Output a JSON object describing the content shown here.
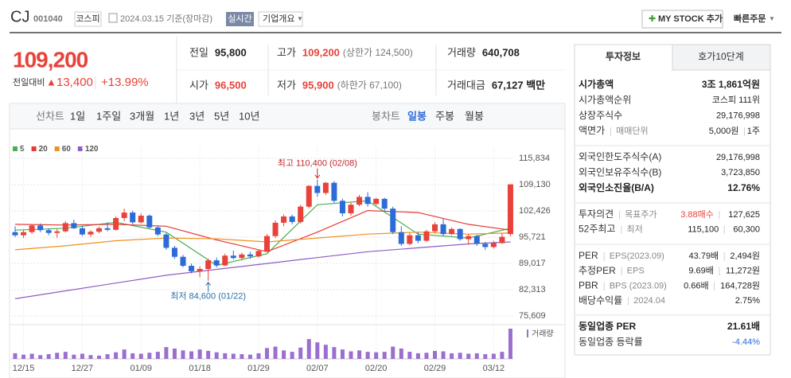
{
  "header": {
    "name": "CJ",
    "code": "001040",
    "market": "코스피",
    "date": "2024.03.15 기준(장마감)",
    "realtime": "실시간",
    "overview": "기업개요",
    "mystock": "MY STOCK 추가",
    "quick_order": "빠른주문"
  },
  "price": {
    "current": "109,200",
    "change_label": "전일대비",
    "change": "13,400",
    "rate": "+13.99%"
  },
  "summary": {
    "rows": [
      [
        {
          "label": "전일",
          "value": "95,800"
        },
        {
          "label": "고가",
          "value": "109,200",
          "note": "(상한가 124,500)"
        },
        {
          "label": "거래량",
          "value": "640,708"
        }
      ],
      [
        {
          "label": "시가",
          "value": "96,500"
        },
        {
          "label": "저가",
          "value": "95,900",
          "note": "(하한가 67,100)"
        },
        {
          "label": "거래대금",
          "value": "67,127 백만"
        }
      ]
    ]
  },
  "periods": {
    "line_label": "선차트",
    "line": [
      "1일",
      "1주일",
      "3개월",
      "1년",
      "3년",
      "5년",
      "10년"
    ],
    "candle_label": "봉차트",
    "candle": [
      "일봉",
      "주봉",
      "월봉"
    ],
    "active_candle": 0
  },
  "chart": {
    "up_color": "#e8423a",
    "down_color": "#2d6bd6",
    "ylim": [
      73983,
      118679
    ],
    "yticks": [
      {
        "value": 115834,
        "label": "115,834"
      },
      {
        "value": 109130,
        "label": "109,130"
      },
      {
        "value": 102426,
        "label": "102,426"
      },
      {
        "value": 95721,
        "label": "95,721"
      },
      {
        "value": 89017,
        "label": "89,017"
      },
      {
        "value": 82313,
        "label": "82,313"
      },
      {
        "value": 75609,
        "label": "75,609"
      }
    ],
    "categories": [
      null,
      "12/15",
      null,
      null,
      null,
      null,
      null,
      null,
      "12/27",
      null,
      null,
      null,
      null,
      null,
      null,
      "01/09",
      null,
      null,
      null,
      null,
      null,
      null,
      "01/18",
      null,
      null,
      null,
      null,
      null,
      null,
      "01/29",
      null,
      null,
      null,
      null,
      null,
      null,
      "02/07",
      null,
      null,
      null,
      null,
      null,
      null,
      "02/20",
      null,
      null,
      null,
      null,
      null,
      null,
      "02/29",
      null,
      null,
      null,
      null,
      null,
      null,
      "03/12",
      null,
      null
    ],
    "candles": [
      [
        97000,
        98500,
        95800,
        96200
      ],
      [
        96200,
        97500,
        95500,
        97000
      ],
      [
        97000,
        99000,
        96500,
        98700
      ],
      [
        98700,
        99200,
        97000,
        97500
      ],
      [
        97500,
        98000,
        96200,
        96800
      ],
      [
        96800,
        97800,
        95600,
        97200
      ],
      [
        97200,
        99800,
        96900,
        99300
      ],
      [
        99300,
        100200,
        97800,
        98000
      ],
      [
        98000,
        98600,
        96000,
        96400
      ],
      [
        96400,
        97500,
        95800,
        97100
      ],
      [
        97100,
        98400,
        96700,
        98000
      ],
      [
        98000,
        99500,
        97200,
        97600
      ],
      [
        97600,
        101000,
        97400,
        100600
      ],
      [
        100600,
        103000,
        99800,
        102000
      ],
      [
        102000,
        102500,
        99000,
        99500
      ],
      [
        99500,
        101800,
        99200,
        101200
      ],
      [
        101200,
        101500,
        97800,
        98200
      ],
      [
        98200,
        98600,
        96000,
        96400
      ],
      [
        96400,
        96800,
        92500,
        93000
      ],
      [
        93000,
        93500,
        90200,
        90700
      ],
      [
        90700,
        91200,
        88000,
        88400
      ],
      [
        88400,
        89000,
        86500,
        87000
      ],
      [
        87000,
        88200,
        85500,
        87600
      ],
      [
        87600,
        90200,
        84600,
        89800
      ],
      [
        89800,
        90500,
        88000,
        88500
      ],
      [
        88500,
        91500,
        88300,
        91000
      ],
      [
        91000,
        92300,
        90000,
        90400
      ],
      [
        90400,
        91800,
        89800,
        91300
      ],
      [
        91300,
        92000,
        90200,
        90800
      ],
      [
        90800,
        92500,
        90500,
        92200
      ],
      [
        92200,
        96500,
        92000,
        96000
      ],
      [
        96000,
        100000,
        95500,
        99400
      ],
      [
        99400,
        101500,
        98500,
        101000
      ],
      [
        101000,
        101500,
        99000,
        99600
      ],
      [
        99600,
        104000,
        99200,
        103500
      ],
      [
        103500,
        109000,
        103000,
        108800
      ],
      [
        108800,
        110400,
        106000,
        107000
      ],
      [
        107000,
        109800,
        106500,
        109600
      ],
      [
        109600,
        110000,
        104500,
        105000
      ],
      [
        105000,
        105500,
        101000,
        101800
      ],
      [
        101800,
        104500,
        101200,
        104000
      ],
      [
        104000,
        106500,
        103600,
        106000
      ],
      [
        106000,
        107200,
        103500,
        104200
      ],
      [
        104200,
        105800,
        103800,
        105500
      ],
      [
        105500,
        105800,
        102500,
        103000
      ],
      [
        103000,
        103500,
        96500,
        97000
      ],
      [
        97000,
        98500,
        93500,
        94000
      ],
      [
        94000,
        96800,
        93600,
        96200
      ],
      [
        96200,
        97000,
        94200,
        94800
      ],
      [
        94800,
        97600,
        94500,
        97200
      ],
      [
        97200,
        99500,
        96800,
        99000
      ],
      [
        99000,
        100600,
        96000,
        96500
      ],
      [
        96500,
        98200,
        96200,
        97800
      ],
      [
        97800,
        98000,
        94800,
        95200
      ],
      [
        95200,
        96500,
        93800,
        96000
      ],
      [
        96000,
        96300,
        93500,
        94000
      ],
      [
        94000,
        94500,
        92500,
        93200
      ],
      [
        93200,
        94800,
        92800,
        94200
      ],
      [
        94200,
        96700,
        94000,
        95800
      ],
      [
        96500,
        109200,
        95900,
        109200
      ]
    ],
    "moving_averages": [
      {
        "name": "5",
        "color": "#4caf50",
        "x": [
          0,
          6,
          12,
          18,
          24,
          30,
          36,
          42,
          48,
          54,
          59
        ],
        "values": [
          97500,
          98000,
          99500,
          97000,
          88500,
          91500,
          104000,
          105000,
          96500,
          95500,
          98000
        ]
      },
      {
        "name": "20",
        "color": "#e53935",
        "x": [
          0,
          6,
          12,
          18,
          24,
          30,
          36,
          42,
          48,
          54,
          59
        ],
        "values": [
          99000,
          98800,
          99000,
          98500,
          95000,
          92000,
          97000,
          102500,
          102000,
          99000,
          97500
        ]
      },
      {
        "name": "60",
        "color": "#f0901e",
        "x": [
          0,
          6,
          12,
          18,
          24,
          30,
          36,
          42,
          48,
          54,
          59
        ],
        "values": [
          92500,
          93500,
          94800,
          95500,
          95300,
          94500,
          95500,
          96500,
          97000,
          96500,
          96800
        ]
      },
      {
        "name": "120",
        "color": "#8e5bc4",
        "x": [
          0,
          6,
          12,
          18,
          24,
          30,
          36,
          42,
          48,
          54,
          59
        ],
        "values": [
          80000,
          82000,
          84000,
          86000,
          87500,
          89000,
          90500,
          92000,
          93000,
          94000,
          94500
        ]
      }
    ],
    "volume": {
      "label": "거래량",
      "color": "#9b6fcf",
      "ylim": [
        0,
        640708
      ],
      "values": [
        120000,
        90000,
        110000,
        80000,
        100000,
        130000,
        150000,
        90000,
        110000,
        80000,
        70000,
        100000,
        140000,
        200000,
        120000,
        110000,
        130000,
        150000,
        250000,
        220000,
        180000,
        160000,
        200000,
        170000,
        140000,
        120000,
        110000,
        100000,
        90000,
        120000,
        230000,
        260000,
        180000,
        150000,
        240000,
        420000,
        350000,
        300000,
        250000,
        200000,
        160000,
        180000,
        150000,
        140000,
        150000,
        260000,
        220000,
        150000,
        120000,
        130000,
        170000,
        160000,
        120000,
        130000,
        110000,
        120000,
        100000,
        110000,
        150000,
        640708
      ]
    },
    "annotations": [
      {
        "text": "최고 110,400 (02/08)",
        "index": 36,
        "value": 110400,
        "color": "#c0282d",
        "side": "above"
      },
      {
        "text": "최저 84,600 (01/22)",
        "index": 23,
        "value": 84600,
        "color": "#2a6fa8",
        "side": "below"
      }
    ]
  },
  "invest": {
    "tabs": [
      "투자정보",
      "호가10단계"
    ],
    "sections": [
      [
        {
          "labels": [
            "시가총액"
          ],
          "value": "3조 1,861억원",
          "strong": true
        },
        {
          "labels": [
            "시가총액순위"
          ],
          "value": "코스피 111위"
        },
        {
          "labels": [
            "상장주식수"
          ],
          "value": "29,176,998"
        },
        {
          "labels": [
            "액면가",
            "매매단위"
          ],
          "value": "5,000원",
          "value2": "1주"
        }
      ],
      [
        {
          "labels": [
            "외국인한도주식수(A)"
          ],
          "value": "29,176,998"
        },
        {
          "labels": [
            "외국인보유주식수(B)"
          ],
          "value": "3,723,850"
        },
        {
          "labels": [
            "외국인소진율(B/A)"
          ],
          "value": "12.76%",
          "strong": true
        }
      ],
      [
        {
          "labels": [
            "투자의견",
            "목표주가"
          ],
          "value": "3.88매수",
          "value_color": "#e8423a",
          "value2": "127,625"
        },
        {
          "labels": [
            "52주최고",
            "최저"
          ],
          "value": "115,100",
          "value2": "60,300"
        }
      ],
      [
        {
          "labels": [
            "PER",
            "EPS(2023.09)"
          ],
          "value": "43.79배",
          "value2": "2,494원"
        },
        {
          "labels": [
            "추정PER",
            "EPS"
          ],
          "value": "9.69배",
          "value2": "11,272원"
        },
        {
          "labels": [
            "PBR",
            "BPS (2023.09)"
          ],
          "value": "0.66배",
          "value2": "164,728원"
        },
        {
          "labels": [
            "배당수익률",
            "2024.04"
          ],
          "value": "2.75%"
        }
      ],
      [
        {
          "labels": [
            "동일업종 PER"
          ],
          "value": "21.61배",
          "strong": true
        },
        {
          "labels": [
            "동일업종 등락률"
          ],
          "value": "-4.44%",
          "value_color": "#2d6bd6"
        }
      ]
    ]
  }
}
